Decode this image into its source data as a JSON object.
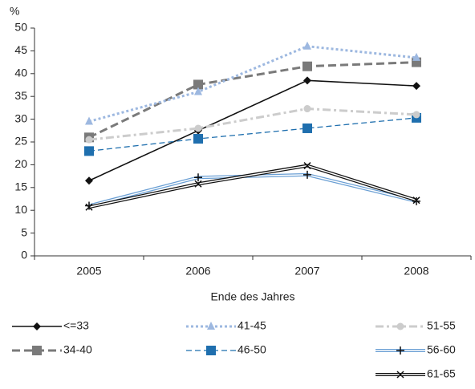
{
  "chart_data": {
    "type": "line",
    "y_label": "%",
    "x_label": "Ende des Jahres",
    "categories": [
      "2005",
      "2006",
      "2007",
      "2008"
    ],
    "ylim": [
      0,
      50
    ],
    "yticks": [
      0,
      5,
      10,
      15,
      20,
      25,
      30,
      35,
      40,
      45,
      50
    ],
    "series": [
      {
        "name": "<=33",
        "color": "#111111",
        "line_style": "solid",
        "marker": "diamond",
        "values": [
          16.5,
          27.5,
          38.5,
          37.3
        ]
      },
      {
        "name": "34-40",
        "color": "#7a7a7a",
        "line_style": "dashed",
        "marker": "square",
        "values": [
          26,
          37.6,
          41.6,
          42.5
        ]
      },
      {
        "name": "41-45",
        "color": "#9db8e0",
        "line_style": "dotted",
        "marker": "triangle",
        "values": [
          29.5,
          36,
          46,
          43.5
        ]
      },
      {
        "name": "46-50",
        "color": "#1f6fae",
        "line_style": "dashed-thin",
        "marker": "square",
        "values": [
          23,
          25.7,
          28,
          30.3
        ]
      },
      {
        "name": "51-55",
        "color": "#cccccc",
        "line_style": "dashdot",
        "marker": "circle",
        "values": [
          25.5,
          28,
          32.3,
          31
        ]
      },
      {
        "name": "56-60",
        "color": "#6a9fd4",
        "line_style": "double",
        "marker": "plus",
        "values": [
          11,
          17.2,
          17.8,
          12
        ]
      },
      {
        "name": "61-65",
        "color": "#111111",
        "line_style": "double",
        "marker": "x",
        "values": [
          10.7,
          15.8,
          19.8,
          12.2
        ]
      }
    ]
  }
}
